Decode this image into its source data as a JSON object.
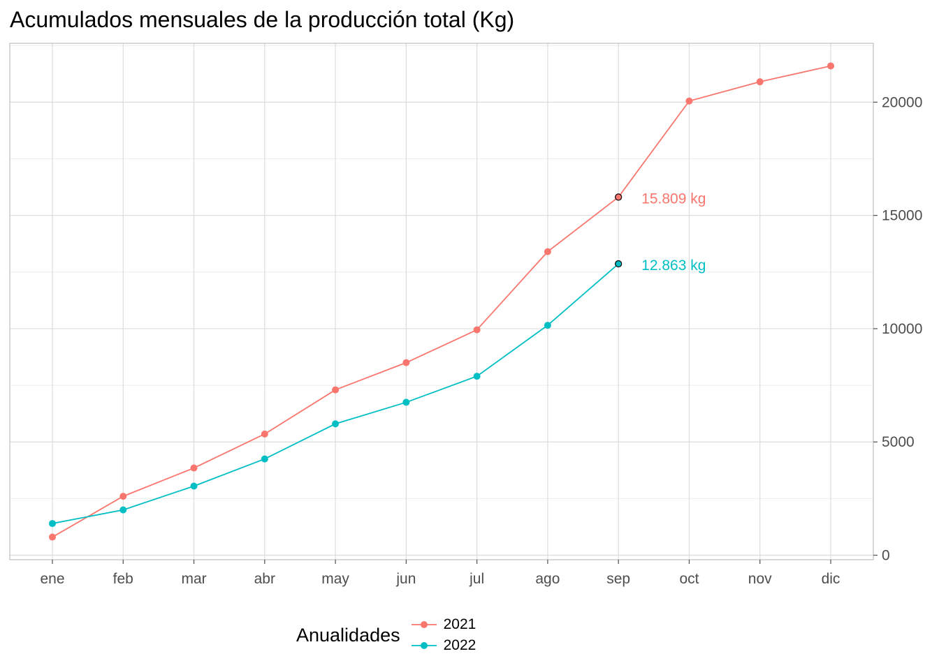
{
  "chart_data": {
    "type": "line",
    "title": "Acumulados mensuales de la producción total (Kg)",
    "xlabel": "",
    "ylabel": "",
    "categories": [
      "ene",
      "feb",
      "mar",
      "abr",
      "may",
      "jun",
      "jul",
      "ago",
      "sep",
      "oct",
      "nov",
      "dic"
    ],
    "yticks": [
      0,
      5000,
      10000,
      15000,
      20000
    ],
    "ylim": [
      -200,
      22600
    ],
    "y_axis_position": "right",
    "grid": true,
    "legend": {
      "title": "Anualidades",
      "position": "bottom"
    },
    "series": [
      {
        "name": "2021",
        "color": "#F8766D",
        "values": [
          800,
          2600,
          3850,
          5350,
          7300,
          8500,
          9950,
          13400,
          15809,
          20050,
          20900,
          21600
        ]
      },
      {
        "name": "2022",
        "color": "#00BFC4",
        "values": [
          1400,
          2000,
          3050,
          4250,
          5800,
          6750,
          7900,
          10150,
          12863,
          null,
          null,
          null
        ]
      }
    ],
    "annotations": [
      {
        "series": "2021",
        "category": "sep",
        "value": 15809,
        "text": "15.809 kg",
        "color": "#F8766D"
      },
      {
        "series": "2022",
        "category": "sep",
        "value": 12863,
        "text": "12.863 kg",
        "color": "#00BFC4"
      }
    ]
  }
}
